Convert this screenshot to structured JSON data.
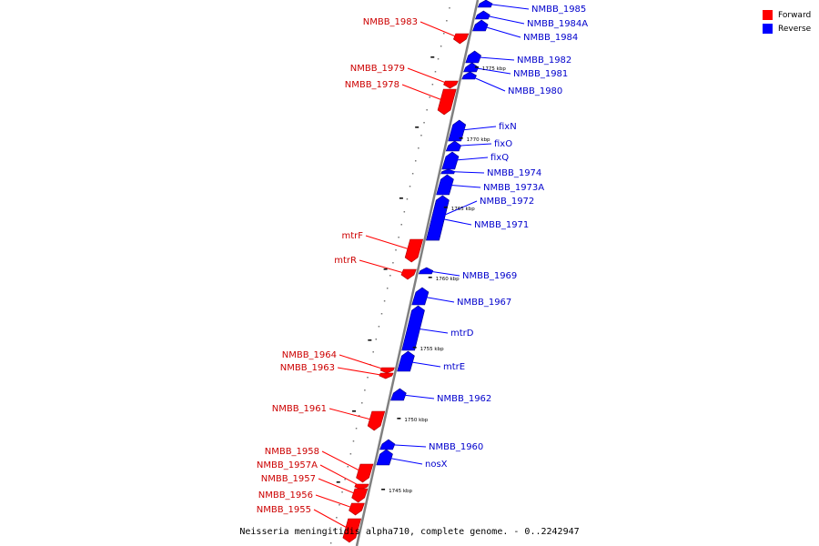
{
  "legend": [
    {
      "label": "Forward",
      "color": "#ff0000"
    },
    {
      "label": "Reverse",
      "color": "#0000ff"
    }
  ],
  "caption": "Neisseria meningitidis alpha710, complete genome. - 0..2242947",
  "colors": {
    "forward": "#ff0000",
    "reverse": "#0000ff",
    "backbone": "#808080",
    "forward_label": "#cc0000",
    "reverse_label": "#0000cc"
  },
  "ticks": [
    {
      "label": "1775 kbp"
    },
    {
      "label": "1770 kbp"
    },
    {
      "label": "1765 kbp"
    },
    {
      "label": "1760 kbp"
    },
    {
      "label": "1755 kbp"
    },
    {
      "label": "1750 kbp"
    },
    {
      "label": "1745 kbp"
    }
  ],
  "features": [
    {
      "name": "NMBB_1985",
      "strand": "reverse"
    },
    {
      "name": "NMBB_1984A",
      "strand": "reverse"
    },
    {
      "name": "NMBB_1984",
      "strand": "reverse"
    },
    {
      "name": "NMBB_1983",
      "strand": "forward"
    },
    {
      "name": "NMBB_1982",
      "strand": "reverse"
    },
    {
      "name": "NMBB_1981",
      "strand": "reverse"
    },
    {
      "name": "NMBB_1980",
      "strand": "reverse"
    },
    {
      "name": "NMBB_1979",
      "strand": "forward"
    },
    {
      "name": "NMBB_1978",
      "strand": "forward"
    },
    {
      "name": "fixN",
      "strand": "reverse"
    },
    {
      "name": "fixO",
      "strand": "reverse"
    },
    {
      "name": "fixQ",
      "strand": "reverse"
    },
    {
      "name": "NMBB_1974",
      "strand": "reverse"
    },
    {
      "name": "NMBB_1973A",
      "strand": "reverse"
    },
    {
      "name": "NMBB_1972",
      "strand": "reverse"
    },
    {
      "name": "NMBB_1971",
      "strand": "reverse"
    },
    {
      "name": "mtrF",
      "strand": "forward"
    },
    {
      "name": "mtrR",
      "strand": "forward"
    },
    {
      "name": "NMBB_1969",
      "strand": "reverse"
    },
    {
      "name": "NMBB_1967",
      "strand": "reverse"
    },
    {
      "name": "mtrD",
      "strand": "reverse"
    },
    {
      "name": "mtrE",
      "strand": "reverse"
    },
    {
      "name": "NMBB_1964",
      "strand": "forward"
    },
    {
      "name": "NMBB_1963",
      "strand": "forward"
    },
    {
      "name": "NMBB_1962",
      "strand": "reverse"
    },
    {
      "name": "NMBB_1961",
      "strand": "forward"
    },
    {
      "name": "NMBB_1960",
      "strand": "reverse"
    },
    {
      "name": "nosX",
      "strand": "reverse"
    },
    {
      "name": "NMBB_1958",
      "strand": "forward"
    },
    {
      "name": "NMBB_1957A",
      "strand": "forward"
    },
    {
      "name": "NMBB_1957",
      "strand": "forward"
    },
    {
      "name": "NMBB_1956",
      "strand": "forward"
    },
    {
      "name": "NMBB_1955",
      "strand": "forward"
    }
  ]
}
